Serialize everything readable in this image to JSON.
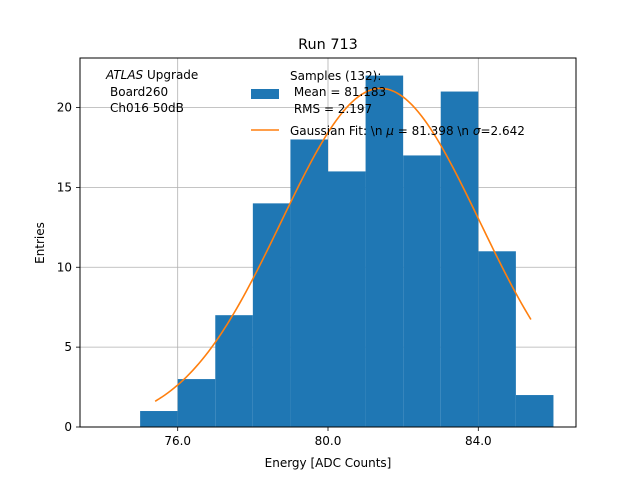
{
  "chart_data": {
    "type": "bar",
    "title": "Run 713",
    "xlabel": "Energy [ADC Counts]",
    "ylabel": "Entries",
    "xlim": [
      73.4,
      86.6
    ],
    "ylim": [
      0,
      23.1
    ],
    "grid": true,
    "x_ticks": [
      {
        "value": 76.0,
        "label": "76.0"
      },
      {
        "value": 80.0,
        "label": "80.0"
      },
      {
        "value": 84.0,
        "label": "84.0"
      }
    ],
    "y_ticks": [
      {
        "value": 0,
        "label": "0"
      },
      {
        "value": 5,
        "label": "5"
      },
      {
        "value": 10,
        "label": "10"
      },
      {
        "value": 15,
        "label": "15"
      },
      {
        "value": 20,
        "label": "20"
      }
    ],
    "histogram": {
      "name": "Samples (132):",
      "bins": [
        {
          "lo": 75.0,
          "hi": 76.0,
          "count": 1
        },
        {
          "lo": 76.0,
          "hi": 77.0,
          "count": 3
        },
        {
          "lo": 77.0,
          "hi": 78.0,
          "count": 7
        },
        {
          "lo": 78.0,
          "hi": 79.0,
          "count": 14
        },
        {
          "lo": 79.0,
          "hi": 80.0,
          "count": 18
        },
        {
          "lo": 80.0,
          "hi": 81.0,
          "count": 16
        },
        {
          "lo": 81.0,
          "hi": 82.0,
          "count": 22
        },
        {
          "lo": 82.0,
          "hi": 83.0,
          "count": 17
        },
        {
          "lo": 83.0,
          "hi": 84.0,
          "count": 21
        },
        {
          "lo": 84.0,
          "hi": 85.0,
          "count": 11
        },
        {
          "lo": 85.0,
          "hi": 86.0,
          "count": 2
        }
      ],
      "color": "#1f77b4"
    },
    "fit": {
      "name": "Gaussian Fit",
      "mu": 81.398,
      "sigma": 2.642,
      "amplitude": 21.2,
      "x_range": [
        75.4,
        85.4
      ],
      "color": "#ff7f0e"
    },
    "annotation": {
      "experiment": "ATLAS",
      "experiment_suffix": " Upgrade",
      "board": "Board260",
      "channel": "Ch016 50dB"
    },
    "legend": {
      "position": "top-right",
      "hist_line1": "Samples (132):",
      "hist_line2": " Mean = 81.183",
      "hist_line3": " RMS = 2.197",
      "fit_prefix": "Gaussian Fit: \\n ",
      "fit_mu_symbol": "μ",
      "fit_mu_text": " = 81.398 \\n ",
      "fit_sigma_symbol": "σ",
      "fit_sigma_text": "=2.642"
    }
  }
}
